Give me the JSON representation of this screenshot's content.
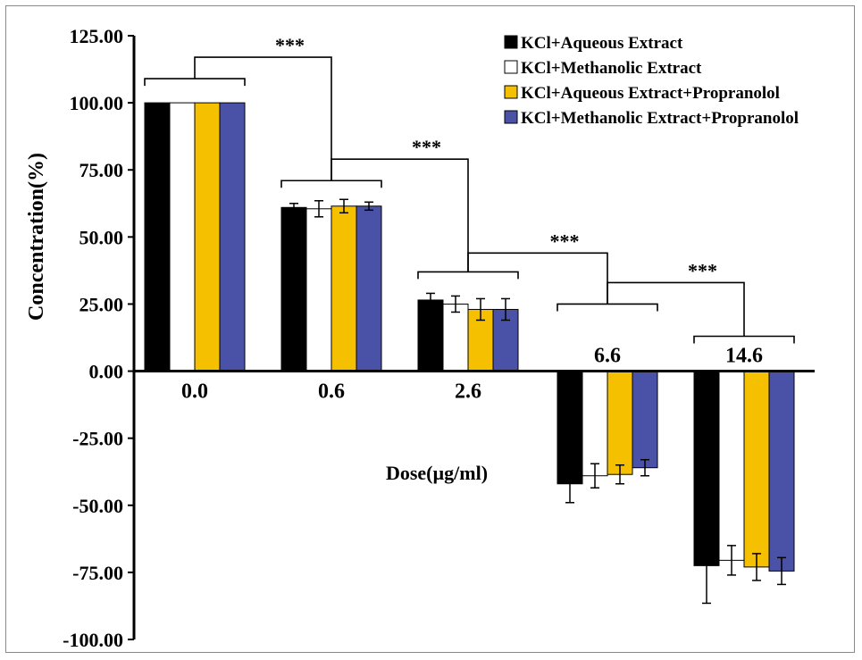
{
  "chart_data": {
    "type": "bar",
    "categories": [
      "0.0",
      "0.6",
      "2.6",
      "6.6",
      "14.6"
    ],
    "series": [
      {
        "name": "KCl+Aqueous Extract",
        "color": "#000000",
        "values": [
          100.0,
          61.0,
          26.5,
          -42.0,
          -72.5
        ],
        "errors": [
          0,
          1.5,
          2.5,
          7.0,
          14.0
        ]
      },
      {
        "name": "KCl+Methanolic Extract",
        "color": "#ffffff",
        "values": [
          100.0,
          60.5,
          25.0,
          -39.0,
          -70.5
        ],
        "errors": [
          0,
          3.0,
          3.0,
          4.5,
          5.5
        ]
      },
      {
        "name": "KCl+Aqueous Extract+Propranolol",
        "color": "#f5c000",
        "values": [
          100.0,
          61.5,
          23.0,
          -38.5,
          -73.0
        ],
        "errors": [
          0,
          2.5,
          4.0,
          3.5,
          5.0
        ]
      },
      {
        "name": "KCl+Methanolic Extract+Propranolol",
        "color": "#4a52a8",
        "values": [
          100.0,
          61.5,
          23.0,
          -36.0,
          -74.5
        ],
        "errors": [
          0,
          1.5,
          4.0,
          3.0,
          5.0
        ]
      }
    ],
    "title": "",
    "xlabel": "Dose(µg/ml)",
    "ylabel": "Concentration(%)",
    "ylim": [
      -100,
      125
    ],
    "yticks": [
      "125.00",
      "100.00",
      "75.00",
      "50.00",
      "25.00",
      "0.00",
      "-25.00",
      "-50.00",
      "-75.00",
      "-100.00"
    ],
    "significance": [
      "***",
      "***",
      "***",
      "***"
    ],
    "legend_position": "top-right",
    "grid": false
  }
}
